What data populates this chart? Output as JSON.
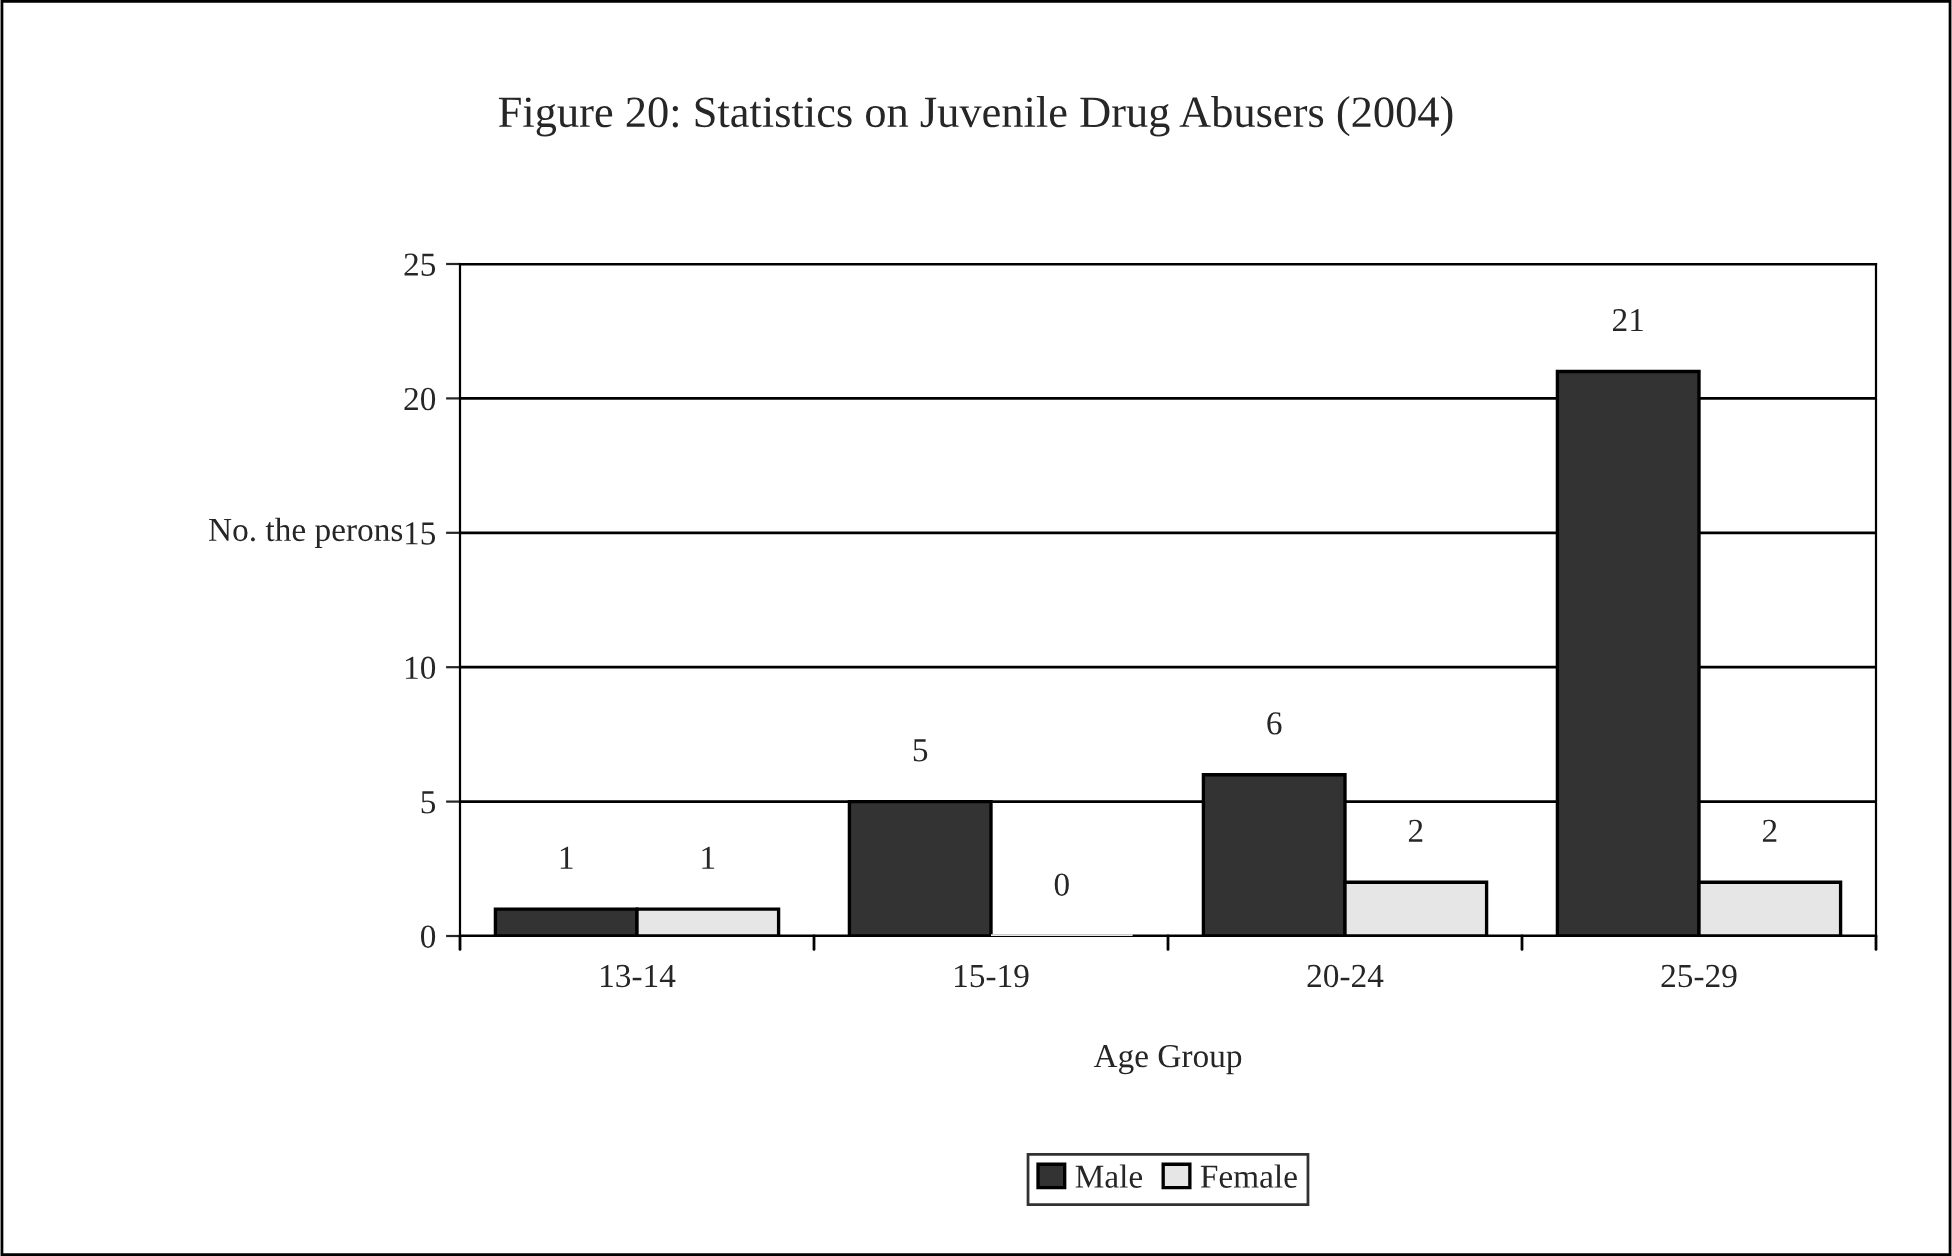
{
  "chart_data": {
    "type": "bar",
    "title": "Figure 20: Statistics on Juvenile Drug Abusers (2004)",
    "xlabel": "Age Group",
    "ylabel": "No. the perons",
    "categories": [
      "13-14",
      "15-19",
      "20-24",
      "25-29"
    ],
    "series": [
      {
        "name": "Male",
        "color": "#333333",
        "values": [
          1,
          5,
          6,
          21
        ]
      },
      {
        "name": "Female",
        "color": "#e6e6e6",
        "values": [
          1,
          0,
          2,
          2
        ]
      }
    ],
    "ylim": [
      0,
      25
    ],
    "yticks": [
      0,
      5,
      10,
      15,
      20,
      25
    ],
    "grid": "y",
    "legend": "bottom",
    "data_labels": true
  }
}
